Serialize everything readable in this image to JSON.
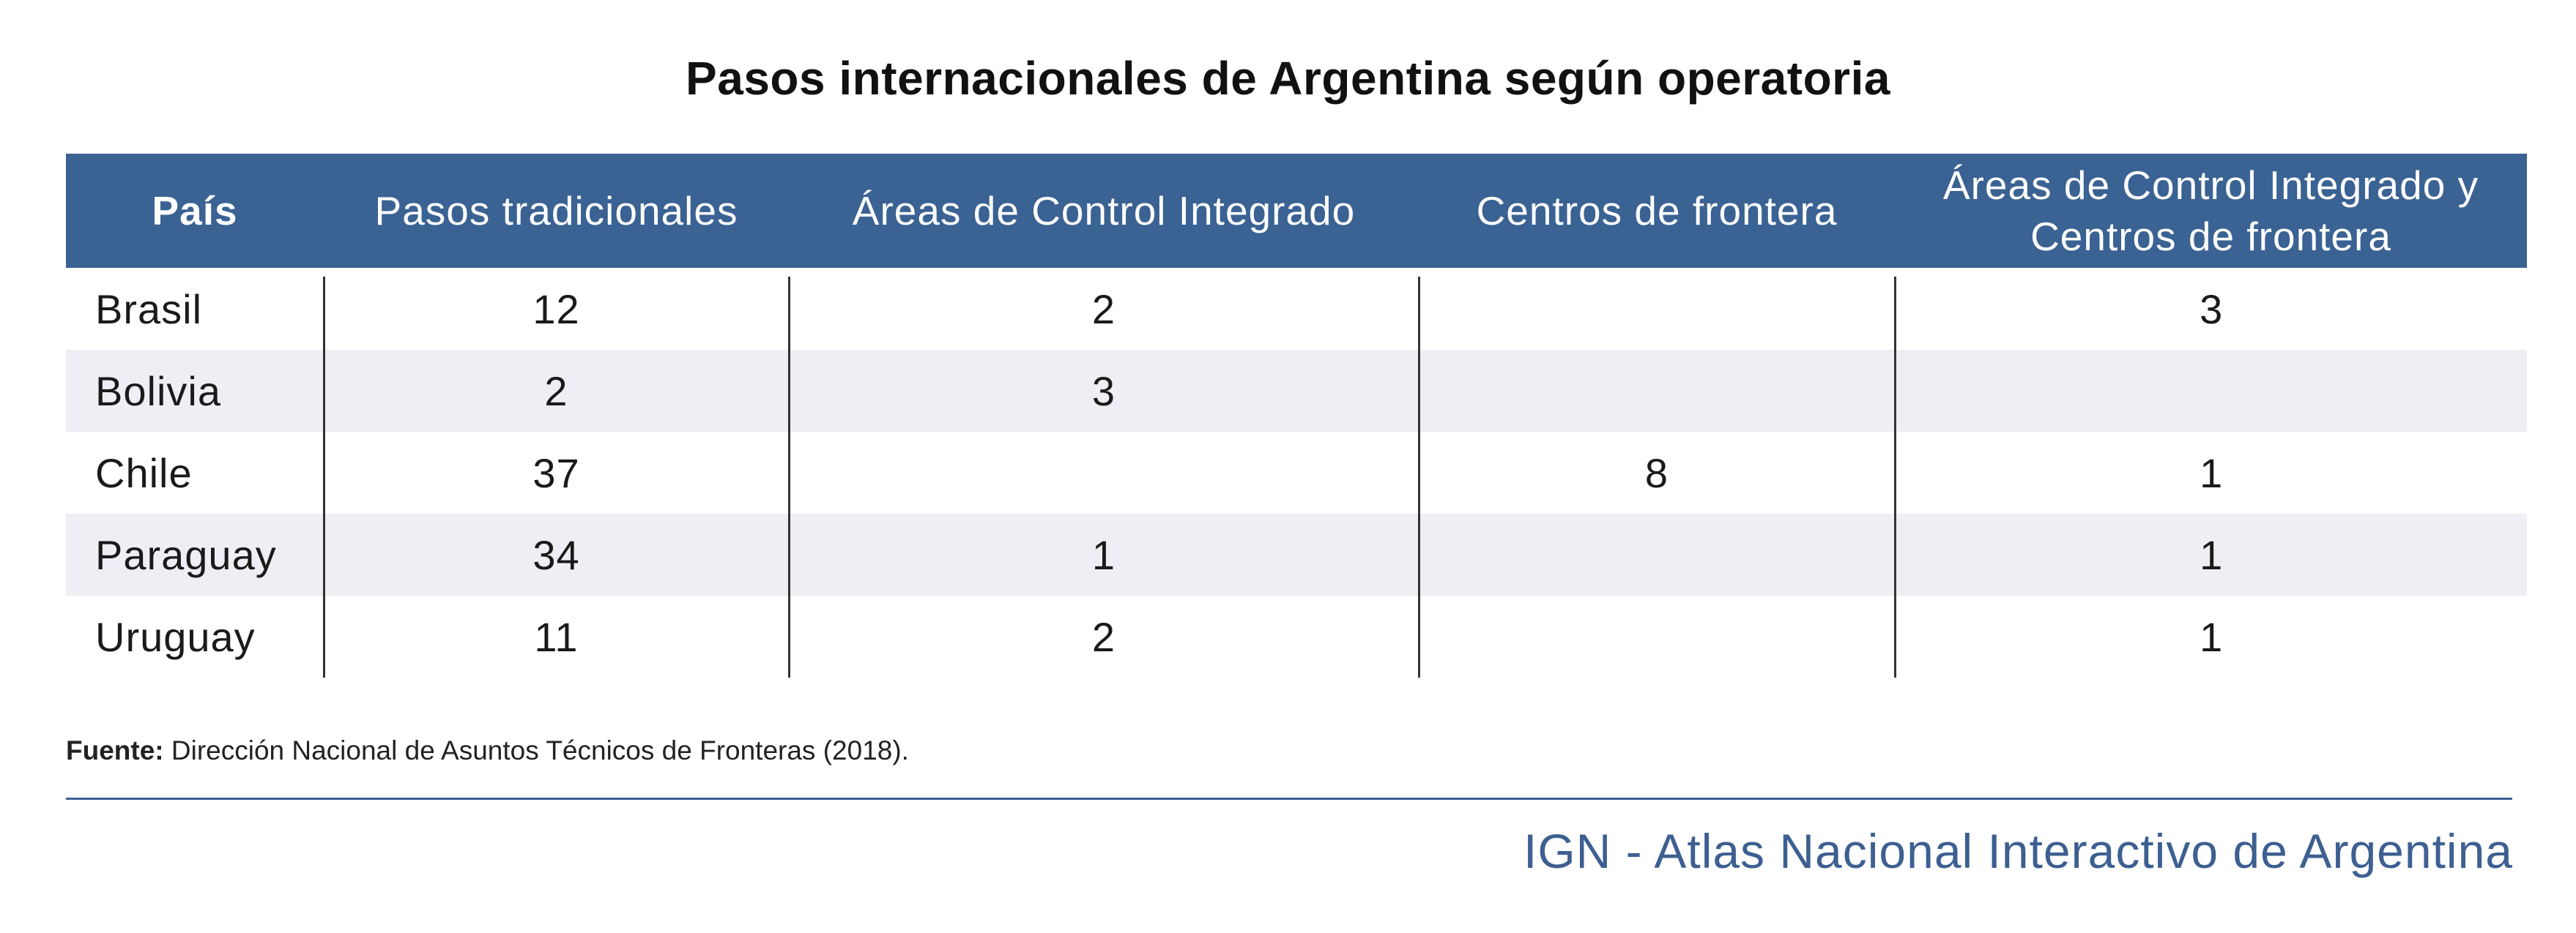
{
  "title": "Pasos internacionales de Argentina según operatoria",
  "table": {
    "headers": [
      "País",
      "Pasos tradicionales",
      "Áreas de Control Integrado",
      "Centros de frontera",
      "Áreas de Control Integrado y Centros de frontera"
    ],
    "rows": [
      {
        "country": "Brasil",
        "tradicionales": "12",
        "aci": "2",
        "centros": "",
        "aci_centros": "3"
      },
      {
        "country": "Bolivia",
        "tradicionales": "2",
        "aci": "3",
        "centros": "",
        "aci_centros": ""
      },
      {
        "country": "Chile",
        "tradicionales": "37",
        "aci": "",
        "centros": "8",
        "aci_centros": "1"
      },
      {
        "country": "Paraguay",
        "tradicionales": "34",
        "aci": "1",
        "centros": "",
        "aci_centros": "1"
      },
      {
        "country": "Uruguay",
        "tradicionales": "11",
        "aci": "2",
        "centros": "",
        "aci_centros": "1"
      }
    ]
  },
  "source": {
    "label": "Fuente:",
    "text": "Dirección Nacional de Asuntos Técnicos de Fronteras (2018)."
  },
  "footer": {
    "brand": "IGN - Atlas Nacional Interactivo de Argentina"
  },
  "colors": {
    "header_bg": "#3a6293",
    "row_shade": "#efeef4",
    "brand_text": "#3d5f91"
  }
}
